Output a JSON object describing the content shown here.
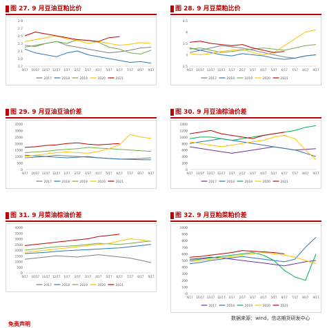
{
  "legend_names": [
    "2017",
    "2018",
    "2019",
    "2020",
    "2021"
  ],
  "colors": [
    "#7f7f7f",
    "#2e75b6",
    "#70ad47",
    "#ffc000",
    "#c00000"
  ],
  "extra_colors": [
    "#7030a0",
    "#2e75b6",
    "#00b050",
    "#ffc000",
    "#c00000"
  ],
  "x_ticks": [
    "9/17",
    "10/17",
    "11/17",
    "12/17",
    "1/17",
    "2/17",
    "3/17",
    "4/17",
    "5/17",
    "6/17",
    "7/17",
    "8/17",
    "9/17"
  ],
  "footer": {
    "source": "数据来源：wind，信达期货研发中心",
    "next": "免责声明"
  },
  "chart_data": [
    {
      "title": "图 27. 9 月豆油豆粕比价",
      "type": "line",
      "ylim": [
        1.7,
        2.9
      ],
      "yticks": [
        "2.9",
        "2.7",
        "2.5",
        "2.3",
        "2.1",
        "1.9",
        "1.7"
      ],
      "series": [
        {
          "name": "2017",
          "values": [
            2.25,
            2.22,
            2.3,
            2.35,
            2.25,
            2.2,
            2.15,
            2.1,
            2.05,
            2.08,
            2.12,
            2.18,
            2.2
          ]
        },
        {
          "name": "2018",
          "values": [
            2.15,
            2.05,
            2.0,
            1.95,
            2.05,
            2.1,
            2.0,
            1.95,
            1.9,
            1.85,
            1.8,
            1.82,
            1.78
          ]
        },
        {
          "name": "2019",
          "values": [
            2.2,
            2.25,
            2.3,
            2.35,
            2.3,
            2.4,
            2.38,
            2.33,
            2.2,
            2.15,
            2.05,
            2.02,
            2.12
          ]
        },
        {
          "name": "2020",
          "values": [
            2.35,
            2.4,
            2.45,
            2.5,
            2.42,
            2.38,
            2.3,
            2.35,
            2.3,
            2.25,
            2.28,
            2.32,
            2.3
          ]
        },
        {
          "name": "2021",
          "values": [
            2.5,
            2.6,
            2.55,
            2.5,
            2.45,
            2.4,
            2.38,
            2.35,
            2.45,
            2.48,
            null,
            null,
            null
          ]
        }
      ]
    },
    {
      "title": "图 28. 9 月豆菜粕比价",
      "type": "line",
      "ylim": [
        2.5,
        4.5
      ],
      "yticks": [
        "4.5",
        "4",
        "3.5",
        "3",
        "2.5"
      ],
      "series": [
        {
          "name": "2017",
          "values": [
            3.1,
            3.2,
            3.3,
            3.4,
            3.35,
            3.3,
            3.2,
            3.1,
            3.0,
            2.9,
            2.85,
            2.95,
            3.0
          ]
        },
        {
          "name": "2018",
          "values": [
            3.3,
            3.2,
            3.1,
            3.0,
            2.95,
            3.05,
            3.0,
            2.95,
            2.85,
            2.8,
            2.85,
            2.95,
            3.0
          ]
        },
        {
          "name": "2019",
          "values": [
            3.25,
            3.3,
            3.2,
            3.1,
            3.15,
            3.2,
            3.25,
            3.3,
            3.25,
            3.2,
            3.3,
            3.4,
            3.45
          ]
        },
        {
          "name": "2020",
          "values": [
            3.05,
            3.0,
            3.05,
            3.15,
            3.2,
            3.25,
            3.1,
            3.0,
            3.1,
            3.4,
            3.7,
            4.0,
            4.1
          ]
        },
        {
          "name": "2021",
          "values": [
            3.55,
            3.6,
            3.5,
            3.45,
            3.4,
            3.45,
            3.3,
            3.2,
            3.1,
            3.15,
            null,
            null,
            null
          ]
        }
      ]
    },
    {
      "title": "图 29. 9 月豆油豆油价差",
      "type": "line",
      "ylim": [
        0,
        3500
      ],
      "yticks": [
        "3500",
        "3000",
        "2500",
        "2000",
        "1500",
        "1000",
        "500",
        "0"
      ],
      "series": [
        {
          "name": "2017",
          "values": [
            900,
            950,
            1000,
            1100,
            1050,
            1000,
            950,
            900,
            850,
            800,
            820,
            850,
            900
          ]
        },
        {
          "name": "2018",
          "values": [
            1100,
            1050,
            1000,
            950,
            900,
            950,
            1000,
            900,
            850,
            800,
            780,
            760,
            750
          ]
        },
        {
          "name": "2019",
          "values": [
            1300,
            1350,
            1400,
            1500,
            1550,
            1600,
            1700,
            1650,
            1600,
            1550,
            1500,
            1450,
            1400
          ]
        },
        {
          "name": "2020",
          "values": [
            1000,
            1100,
            1200,
            1300,
            1350,
            1300,
            1250,
            1400,
            1600,
            1900,
            2700,
            2500,
            2400
          ]
        },
        {
          "name": "2021",
          "values": [
            1700,
            1750,
            1850,
            1900,
            2000,
            2050,
            1950,
            1900,
            1950,
            2000,
            null,
            null,
            null
          ]
        }
      ]
    },
    {
      "title": "图 30. 9 月豆油棕油价差",
      "type": "line",
      "ylim": [
        0,
        1400
      ],
      "yticks": [
        "1400",
        "1200",
        "1000",
        "800",
        "600",
        "400",
        "200",
        "0"
      ],
      "series": [
        {
          "name": "2017",
          "values": [
            700,
            650,
            600,
            550,
            500,
            550,
            600,
            650,
            700,
            650,
            600,
            620,
            640
          ]
        },
        {
          "name": "2018",
          "values": [
            800,
            850,
            900,
            950,
            900,
            850,
            800,
            750,
            700,
            650,
            600,
            500,
            400
          ]
        },
        {
          "name": "2019",
          "values": [
            950,
            1000,
            1000,
            950,
            900,
            950,
            1000,
            1050,
            1100,
            1150,
            1200,
            1300,
            1350
          ]
        },
        {
          "name": "2020",
          "values": [
            850,
            800,
            750,
            700,
            750,
            800,
            850,
            900,
            1000,
            1050,
            950,
            600,
            300
          ]
        },
        {
          "name": "2021",
          "values": [
            1100,
            1150,
            1200,
            1100,
            1050,
            1000,
            950,
            1050,
            1100,
            1150,
            null,
            null,
            null
          ]
        }
      ]
    },
    {
      "title": "图 31. 9 月菜油棕油价差",
      "type": "line",
      "ylim": [
        0,
        4000
      ],
      "yticks": [
        "4000",
        "3500",
        "3000",
        "2500",
        "2000",
        "1500",
        "1000",
        "500",
        "0"
      ],
      "series": [
        {
          "name": "2017",
          "values": [
            1200,
            1300,
            1400,
            1500,
            1450,
            1400,
            1500,
            1600,
            1500,
            1400,
            1300,
            1100,
            900
          ]
        },
        {
          "name": "2018",
          "values": [
            1700,
            1750,
            1800,
            1900,
            1950,
            2000,
            2050,
            2100,
            2150,
            2200,
            2300,
            2400,
            2500
          ]
        },
        {
          "name": "2019",
          "values": [
            2000,
            2100,
            2200,
            2300,
            2350,
            2400,
            2500,
            2600,
            2550,
            2500,
            2600,
            2700,
            2800
          ]
        },
        {
          "name": "2020",
          "values": [
            1800,
            1900,
            2000,
            2100,
            2200,
            2300,
            2400,
            2500,
            2600,
            2800,
            3000,
            2900,
            2800
          ]
        },
        {
          "name": "2021",
          "values": [
            2400,
            2500,
            2600,
            2700,
            2800,
            2900,
            3000,
            3200,
            3300,
            3400,
            null,
            null,
            null
          ]
        }
      ]
    },
    {
      "title": "图 32. 9 月豆粕菜粕价差",
      "type": "line",
      "ylim": [
        0,
        1000
      ],
      "yticks": [
        "1000",
        "900",
        "800",
        "700",
        "600",
        "500",
        "400",
        "300",
        "200",
        "100",
        "0"
      ],
      "series": [
        {
          "name": "2017",
          "values": [
            520,
            530,
            550,
            540,
            520,
            500,
            480,
            460,
            440,
            420,
            450,
            480,
            500
          ]
        },
        {
          "name": "2018",
          "values": [
            450,
            470,
            500,
            520,
            540,
            560,
            540,
            520,
            500,
            480,
            520,
            700,
            850
          ]
        },
        {
          "name": "2019",
          "values": [
            500,
            520,
            540,
            560,
            580,
            600,
            620,
            580,
            500,
            350,
            250,
            200,
            600
          ]
        },
        {
          "name": "2020",
          "values": [
            480,
            500,
            520,
            540,
            560,
            580,
            600,
            620,
            600,
            580,
            550,
            500,
            450
          ]
        },
        {
          "name": "2021",
          "values": [
            550,
            560,
            580,
            600,
            620,
            650,
            640,
            630,
            620,
            600,
            null,
            null,
            null
          ]
        }
      ]
    }
  ]
}
